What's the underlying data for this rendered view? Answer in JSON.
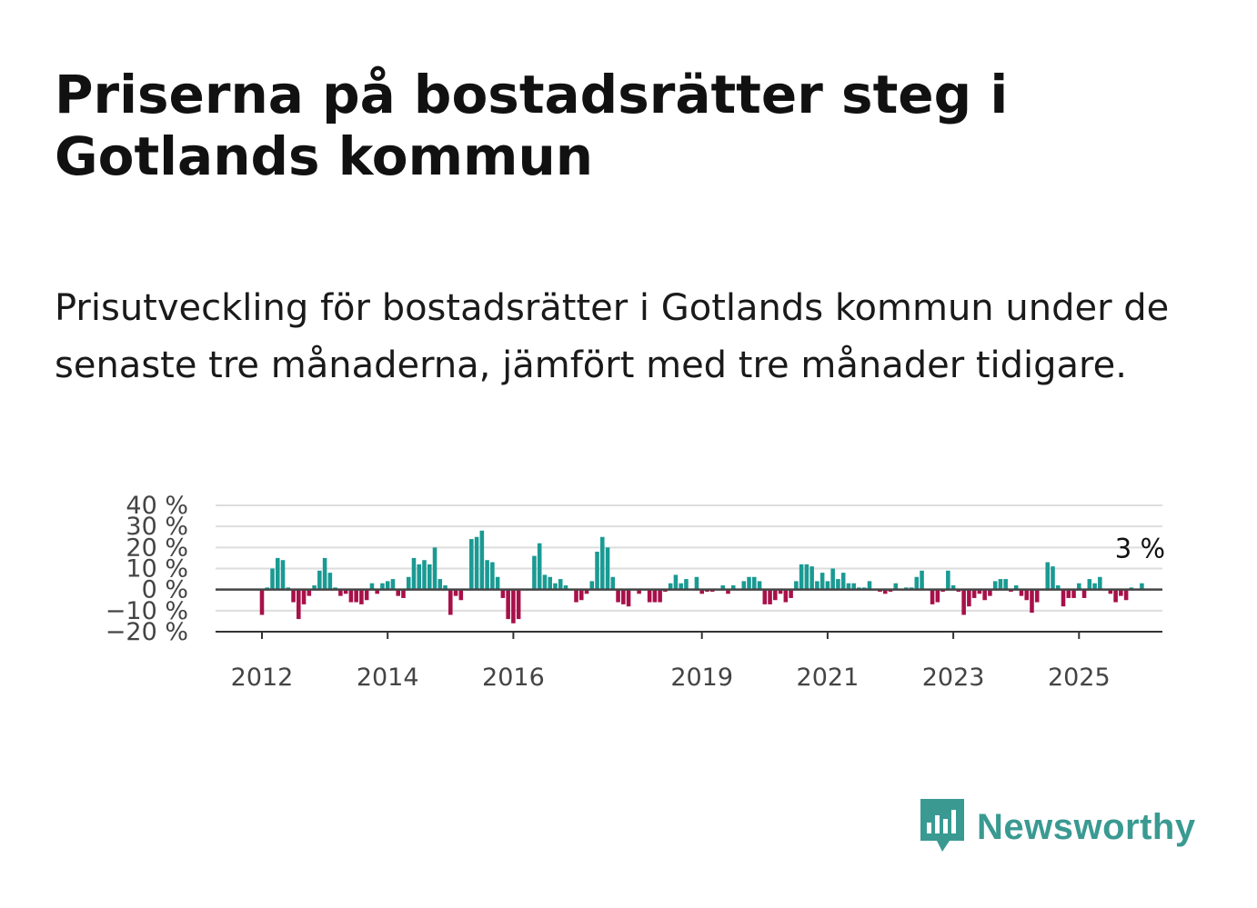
{
  "header": {
    "title": "Priserna på bostadsrätter steg i Gotlands kommun",
    "subtitle": "Prisutveckling för bostadsrätter i Gotlands kommun under de senaste tre månaderna, jämfört med tre månader tidigare."
  },
  "logo": {
    "text": "Newsworthy",
    "icon": "newsworthy-bars-icon"
  },
  "colors": {
    "positive": "#1a9a93",
    "negative": "#a8104a",
    "grid": "#dddddd",
    "zero": "#444444",
    "text": "#111111"
  },
  "chart_data": {
    "type": "bar",
    "x_start": "2012-01",
    "x_end": "2025-08",
    "ylim": [
      -20,
      40
    ],
    "y_ticks": [
      "40 %",
      "30 %",
      "20 %",
      "10 %",
      "0 %",
      "−10 %",
      "−20 %"
    ],
    "y_tick_values": [
      40,
      30,
      20,
      10,
      0,
      -10,
      -20
    ],
    "x_ticks": [
      "2012",
      "2014",
      "2016",
      "2019",
      "2021",
      "2023",
      "2025"
    ],
    "x_tick_years": [
      2012,
      2014,
      2016,
      2019,
      2021,
      2023,
      2025
    ],
    "grid": true,
    "annotation": {
      "text": "3 %",
      "value": 3
    },
    "values": [
      -12,
      1,
      10,
      15,
      14,
      1,
      -6,
      -14,
      -7,
      -3,
      2,
      9,
      15,
      8,
      1,
      -3,
      -2,
      -6,
      -6,
      -7,
      -5,
      3,
      -2,
      3,
      4,
      5,
      -3,
      -4,
      6,
      15,
      12,
      14,
      12,
      20,
      5,
      2,
      -12,
      -3,
      -5,
      0,
      24,
      25,
      28,
      14,
      13,
      6,
      -4,
      -14,
      -16,
      -14,
      0,
      0,
      16,
      22,
      7,
      6,
      3,
      5,
      2,
      0,
      -6,
      -5,
      -2,
      4,
      18,
      25,
      20,
      6,
      -6,
      -7,
      -8,
      0,
      -2,
      0,
      -6,
      -6,
      -6,
      -1,
      3,
      7,
      3,
      5,
      0,
      6,
      -2,
      -1,
      -1,
      0,
      2,
      -2,
      2,
      0,
      4,
      6,
      6,
      4,
      -7,
      -7,
      -5,
      -2,
      -6,
      -4,
      4,
      12,
      12,
      11,
      4,
      8,
      4,
      10,
      5,
      8,
      3,
      3,
      1,
      1,
      4,
      0,
      -1,
      -2,
      -1,
      3,
      0,
      1,
      1,
      6,
      9,
      0,
      -7,
      -6,
      -1,
      9,
      2,
      -1,
      -12,
      -8,
      -4,
      -2,
      -5,
      -3,
      4,
      5,
      5,
      -1,
      2,
      -3,
      -5,
      -11,
      -6,
      0,
      13,
      11,
      2,
      -8,
      -4,
      -4,
      3,
      -4,
      5,
      3,
      6,
      0,
      -2,
      -6,
      -3,
      -5,
      1,
      0,
      3
    ]
  }
}
